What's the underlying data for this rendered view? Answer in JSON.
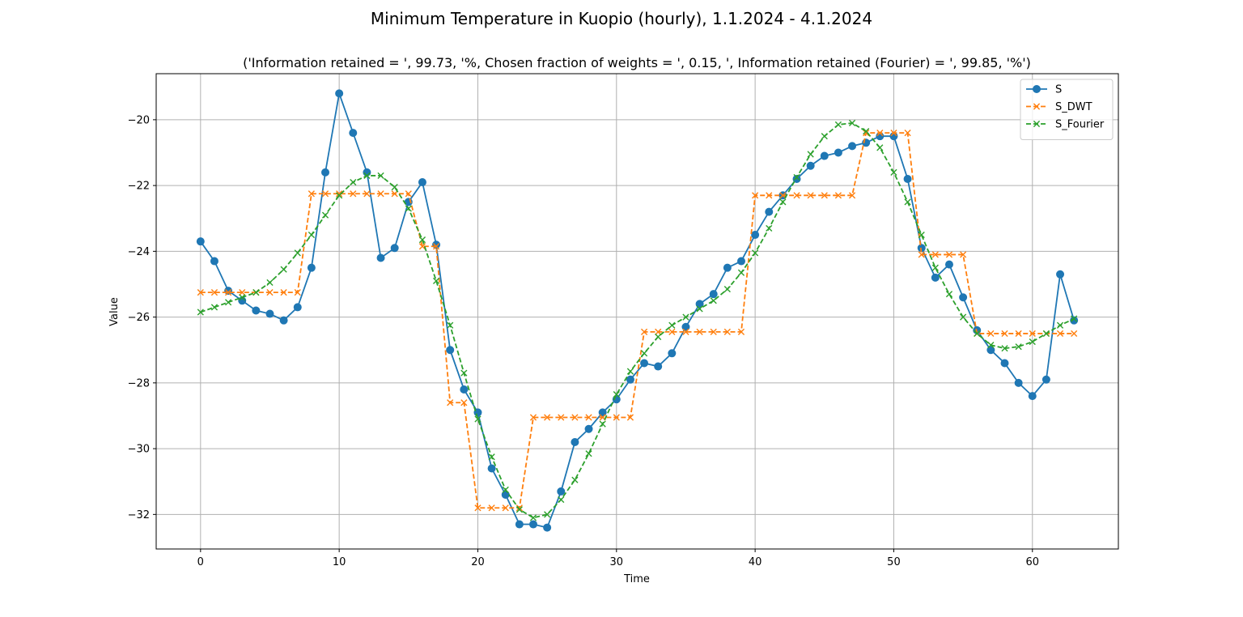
{
  "chart_data": {
    "type": "line",
    "title": "Minimum Temperature in Kuopio (hourly), 1.1.2024 - 4.1.2024",
    "subtitle": "('Information retained = ', 99.73, '%, Chosen fraction of weights = ', 0.15, ', Information retained (Fourier) = ', 99.85, '%')",
    "xlabel": "Time",
    "ylabel": "Value",
    "xlim": [
      -3.2,
      66.2
    ],
    "ylim": [
      -33.05,
      -18.6
    ],
    "xticks": [
      0,
      10,
      20,
      30,
      40,
      50,
      60
    ],
    "xtick_labels": [
      "0",
      "10",
      "20",
      "30",
      "40",
      "50",
      "60"
    ],
    "yticks": [
      -32,
      -30,
      -28,
      -26,
      -24,
      -22,
      -20
    ],
    "ytick_labels": [
      "−32",
      "−30",
      "−28",
      "−26",
      "−24",
      "−22",
      "−20"
    ],
    "grid": true,
    "legend_position": "top-right",
    "series": [
      {
        "name": "S",
        "color": "#1f77b4",
        "linestyle": "solid",
        "marker": "circle",
        "values": [
          -23.7,
          -24.3,
          -25.2,
          -25.5,
          -25.8,
          -25.9,
          -26.1,
          -25.7,
          -24.5,
          -21.6,
          -19.2,
          -20.4,
          -21.6,
          -24.2,
          -23.9,
          -22.5,
          -21.9,
          -23.8,
          -27.0,
          -28.2,
          -28.9,
          -30.6,
          -31.4,
          -32.3,
          -32.3,
          -32.4,
          -31.3,
          -29.8,
          -29.4,
          -28.9,
          -28.5,
          -27.9,
          -27.4,
          -27.5,
          -27.1,
          -26.3,
          -25.6,
          -25.3,
          -24.5,
          -24.3,
          -23.5,
          -22.8,
          -22.3,
          -21.8,
          -21.4,
          -21.1,
          -21.0,
          -20.8,
          -20.7,
          -20.5,
          -20.5,
          -21.8,
          -23.9,
          -24.8,
          -24.4,
          -25.4,
          -26.4,
          -27.0,
          -27.4,
          -28.0,
          -28.4,
          -27.9,
          -24.7,
          -26.1
        ]
      },
      {
        "name": "S_DWT",
        "color": "#ff7f0e",
        "linestyle": "dashed",
        "marker": "x",
        "values": [
          -25.25,
          -25.25,
          -25.25,
          -25.25,
          -25.25,
          -25.25,
          -25.25,
          -25.25,
          -22.25,
          -22.25,
          -22.25,
          -22.25,
          -22.25,
          -22.25,
          -22.25,
          -22.25,
          -23.85,
          -23.85,
          -28.6,
          -28.6,
          -31.8,
          -31.8,
          -31.8,
          -31.8,
          -29.05,
          -29.05,
          -29.05,
          -29.05,
          -29.05,
          -29.05,
          -29.05,
          -29.05,
          -26.45,
          -26.45,
          -26.45,
          -26.45,
          -26.45,
          -26.45,
          -26.45,
          -26.45,
          -22.3,
          -22.3,
          -22.3,
          -22.3,
          -22.3,
          -22.3,
          -22.3,
          -22.3,
          -20.4,
          -20.4,
          -20.4,
          -20.4,
          -24.1,
          -24.1,
          -24.1,
          -24.1,
          -26.5,
          -26.5,
          -26.5,
          -26.5,
          -26.5,
          -26.5,
          -26.5,
          -26.5
        ]
      },
      {
        "name": "S_Fourier",
        "color": "#2ca02c",
        "linestyle": "dashed",
        "marker": "x",
        "values": [
          -25.85,
          -25.7,
          -25.55,
          -25.4,
          -25.25,
          -24.95,
          -24.55,
          -24.05,
          -23.5,
          -22.9,
          -22.3,
          -21.9,
          -21.7,
          -21.7,
          -22.05,
          -22.7,
          -23.65,
          -24.9,
          -26.25,
          -27.7,
          -29.1,
          -30.25,
          -31.25,
          -31.85,
          -32.1,
          -32.0,
          -31.55,
          -30.95,
          -30.15,
          -29.25,
          -28.35,
          -27.65,
          -27.1,
          -26.6,
          -26.25,
          -26.0,
          -25.75,
          -25.5,
          -25.15,
          -24.65,
          -24.05,
          -23.3,
          -22.5,
          -21.75,
          -21.05,
          -20.5,
          -20.15,
          -20.1,
          -20.35,
          -20.85,
          -21.6,
          -22.5,
          -23.5,
          -24.5,
          -25.3,
          -26.0,
          -26.5,
          -26.85,
          -26.95,
          -26.9,
          -26.75,
          -26.5,
          -26.25,
          -26.05
        ]
      }
    ]
  }
}
